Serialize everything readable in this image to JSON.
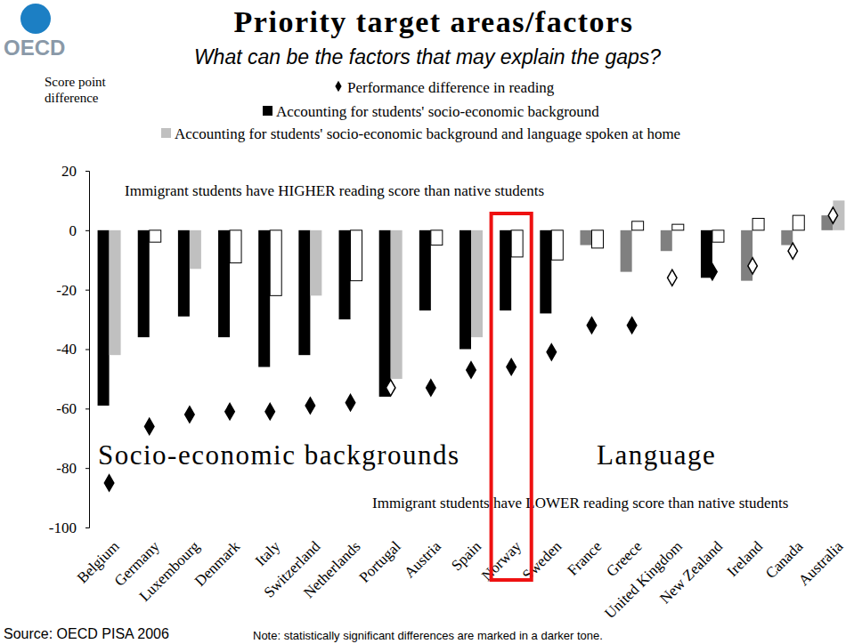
{
  "chart_data": {
    "type": "bar",
    "title": "Priority target areas/factors",
    "subtitle": "What can be the factors that may explain the gaps?",
    "y_label": "Score point difference",
    "logo": "OECD",
    "source": "Source: OECD PISA 2006",
    "note": "Note: statistically significant differences are marked in a darker tone.",
    "annotations": [
      "Immigrant students have HIGHER reading score than native students",
      "Socio-economic backgrounds",
      "Language",
      "Immigrant students have LOWER reading score than native students"
    ],
    "categories": [
      "Belgium",
      "Germany",
      "Luxembourg",
      "Denmark",
      "Italy",
      "Switzerland",
      "Netherlands",
      "Portugal",
      "Austria",
      "Spain",
      "Norway",
      "Sweden",
      "France",
      "Greece",
      "United Kingdom",
      "New Zealand",
      "Ireland",
      "Canada",
      "Australia"
    ],
    "series": [
      {
        "name": "Performance difference in reading",
        "type": "scatter",
        "marker": "diamond",
        "color": "#000000",
        "colors": [
          "#000000",
          "#000000",
          "#000000",
          "#000000",
          "#000000",
          "#000000",
          "#000000",
          "#ffffff",
          "#000000",
          "#000000",
          "#000000",
          "#000000",
          "#000000",
          "#000000",
          "#ffffff",
          "#000000",
          "#ffffff",
          "#ffffff",
          "#ffffff"
        ],
        "values": [
          -85,
          -66,
          -62,
          -61,
          -61,
          -59,
          -58,
          -53,
          -53,
          -47,
          -46,
          -41,
          -32,
          -32,
          -16,
          -14,
          -12,
          -7,
          5
        ]
      },
      {
        "name": "Accounting for students' socio-economic background",
        "type": "bar",
        "color": "#000000",
        "colors": [
          "#000000",
          "#000000",
          "#000000",
          "#000000",
          "#000000",
          "#000000",
          "#000000",
          "#000000",
          "#000000",
          "#000000",
          "#000000",
          "#000000",
          "#808080",
          "#808080",
          "#808080",
          "#000000",
          "#808080",
          "#808080",
          "#808080"
        ],
        "values": [
          -59,
          -36,
          -29,
          -36,
          -46,
          -42,
          -30,
          -56,
          -27,
          -40,
          -27,
          -28,
          -5,
          -14,
          -7,
          -16,
          -17,
          -5,
          5
        ]
      },
      {
        "name": "Accounting for students' socio-economic background and language spoken at home",
        "type": "bar",
        "color": "#c0c0c0",
        "colors": [
          "#c0c0c0",
          "#ffffff",
          "#c0c0c0",
          "#ffffff",
          "#ffffff",
          "#c0c0c0",
          "#ffffff",
          "#c0c0c0",
          "#ffffff",
          "#c0c0c0",
          "#ffffff",
          "#ffffff",
          "#ffffff",
          "#ffffff",
          "#ffffff",
          "#ffffff",
          "#ffffff",
          "#ffffff",
          "#c0c0c0"
        ],
        "values": [
          -42,
          -4,
          -13,
          -11,
          -22,
          -22,
          -17,
          -50,
          -5,
          -36,
          -9,
          -10,
          -6,
          3,
          2,
          -4,
          4,
          5,
          10
        ]
      }
    ],
    "ylim": [
      -100,
      20
    ],
    "yticks": [
      -100,
      -80,
      -60,
      -40,
      -20,
      0,
      20
    ],
    "legend": "top"
  }
}
